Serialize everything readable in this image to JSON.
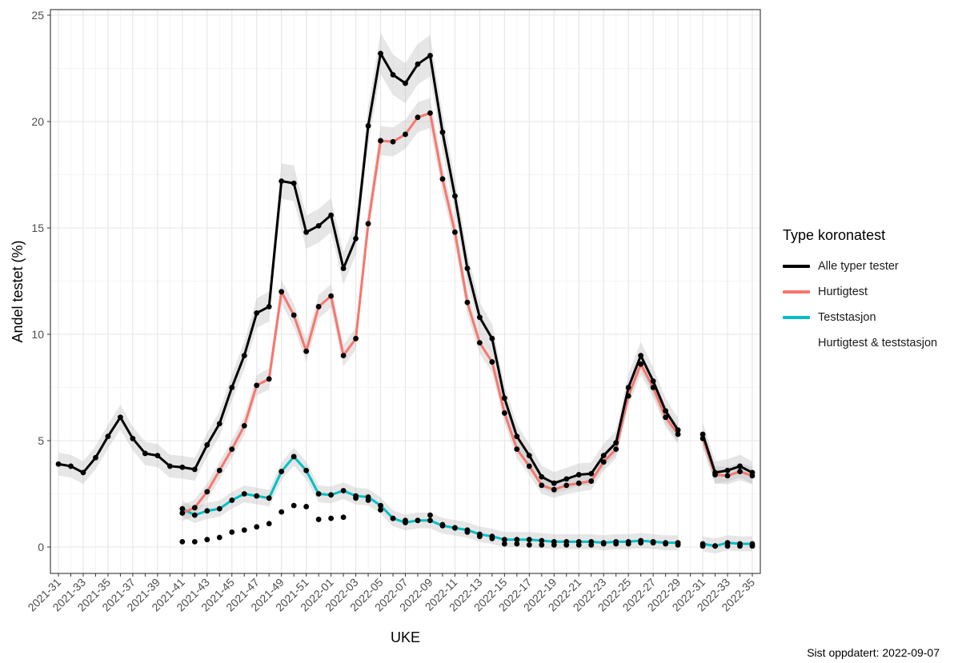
{
  "chart_data": {
    "type": "line",
    "xlabel": "UKE",
    "ylabel": "Andel testet (%)",
    "ylim": [
      -1,
      25
    ],
    "yticks": [
      0,
      5,
      10,
      15,
      20,
      25
    ],
    "grid": true,
    "legend_position": "right",
    "legend_title": "Type koronatest",
    "caption": "Sist oppdatert: 2022-09-07",
    "categories": [
      "2021-31",
      "2021-32",
      "2021-33",
      "2021-34",
      "2021-35",
      "2021-36",
      "2021-37",
      "2021-38",
      "2021-39",
      "2021-40",
      "2021-41",
      "2021-42",
      "2021-43",
      "2021-44",
      "2021-45",
      "2021-46",
      "2021-47",
      "2021-48",
      "2021-49",
      "2021-50",
      "2021-51",
      "2021-52",
      "2022-01",
      "2022-02",
      "2022-03",
      "2022-04",
      "2022-05",
      "2022-06",
      "2022-07",
      "2022-08",
      "2022-09",
      "2022-10",
      "2022-11",
      "2022-12",
      "2022-13",
      "2022-14",
      "2022-15",
      "2022-16",
      "2022-17",
      "2022-18",
      "2022-19",
      "2022-20",
      "2022-21",
      "2022-22",
      "2022-23",
      "2022-24",
      "2022-25",
      "2022-26",
      "2022-27",
      "2022-28",
      "2022-29",
      "2022-30",
      "2022-31",
      "2022-32",
      "2022-33",
      "2022-34",
      "2022-35"
    ],
    "tick_labels": [
      "2021-31",
      "2021-33",
      "2021-35",
      "2021-37",
      "2021-39",
      "2021-41",
      "2021-43",
      "2021-45",
      "2021-47",
      "2021-49",
      "2021-51",
      "2022-01",
      "2022-03",
      "2022-05",
      "2022-07",
      "2022-09",
      "2022-11",
      "2022-13",
      "2022-15",
      "2022-17",
      "2022-19",
      "2022-21",
      "2022-23",
      "2022-25",
      "2022-27",
      "2022-29",
      "2022-31",
      "2022-33",
      "2022-35"
    ],
    "series": [
      {
        "name": "Alle typer tester",
        "color": "#000000",
        "values": [
          3.9,
          3.8,
          3.5,
          4.2,
          5.2,
          6.1,
          5.1,
          4.4,
          4.3,
          3.8,
          3.75,
          3.65,
          4.8,
          5.8,
          7.5,
          9.0,
          11.0,
          11.3,
          17.2,
          17.1,
          14.8,
          15.1,
          15.6,
          13.1,
          14.5,
          19.8,
          23.2,
          22.2,
          21.8,
          22.7,
          23.1,
          19.5,
          16.5,
          13.1,
          10.8,
          9.8,
          7.0,
          5.2,
          4.3,
          3.3,
          3.0,
          3.2,
          3.4,
          3.45,
          4.3,
          4.9,
          7.5,
          9.0,
          7.8,
          6.4,
          5.5,
          null,
          5.3,
          3.5,
          3.6,
          3.8,
          3.5
        ]
      },
      {
        "name": "Hurtigtest",
        "color": "#f8766d",
        "values": [
          null,
          null,
          null,
          null,
          null,
          null,
          null,
          null,
          null,
          null,
          1.6,
          1.85,
          2.6,
          3.6,
          4.6,
          5.7,
          7.6,
          7.9,
          12.0,
          10.9,
          9.2,
          11.3,
          11.8,
          9.0,
          9.8,
          15.2,
          19.1,
          19.05,
          19.4,
          20.2,
          20.4,
          17.3,
          14.8,
          11.5,
          9.6,
          8.7,
          6.3,
          4.6,
          3.8,
          2.9,
          2.7,
          2.9,
          3.0,
          3.1,
          4.0,
          4.6,
          7.1,
          8.6,
          7.5,
          6.1,
          5.3,
          null,
          5.1,
          3.4,
          3.35,
          3.55,
          3.35
        ]
      },
      {
        "name": "Teststasjon",
        "color": "#00bfc4",
        "values": [
          null,
          null,
          null,
          null,
          null,
          null,
          null,
          null,
          null,
          null,
          1.8,
          1.5,
          1.7,
          1.8,
          2.2,
          2.5,
          2.4,
          2.3,
          3.55,
          4.25,
          3.6,
          2.5,
          2.45,
          2.65,
          2.4,
          2.35,
          1.95,
          1.35,
          1.15,
          1.25,
          1.25,
          1.0,
          0.9,
          0.8,
          0.6,
          0.5,
          0.35,
          0.35,
          0.35,
          0.3,
          0.25,
          0.25,
          0.25,
          0.25,
          0.2,
          0.25,
          0.25,
          0.3,
          0.25,
          0.2,
          0.2,
          null,
          0.15,
          0.05,
          0.2,
          0.15,
          0.15
        ]
      },
      {
        "name": "Hurtigtest & teststasjon",
        "color": "#000000",
        "values": [
          null,
          null,
          null,
          null,
          null,
          null,
          null,
          null,
          null,
          null,
          0.25,
          0.25,
          0.35,
          0.45,
          0.7,
          0.8,
          0.95,
          1.1,
          1.65,
          1.95,
          1.9,
          1.3,
          1.35,
          1.4,
          2.3,
          2.2,
          1.75,
          1.35,
          1.25,
          1.25,
          1.5,
          1.05,
          0.9,
          0.7,
          0.5,
          0.4,
          0.15,
          0.15,
          0.1,
          0.1,
          0.1,
          0.1,
          0.1,
          0.1,
          0.15,
          0.15,
          0.15,
          0.2,
          0.2,
          0.15,
          0.1,
          null,
          0.05,
          0.05,
          0.05,
          0.05,
          0.05
        ]
      }
    ]
  }
}
